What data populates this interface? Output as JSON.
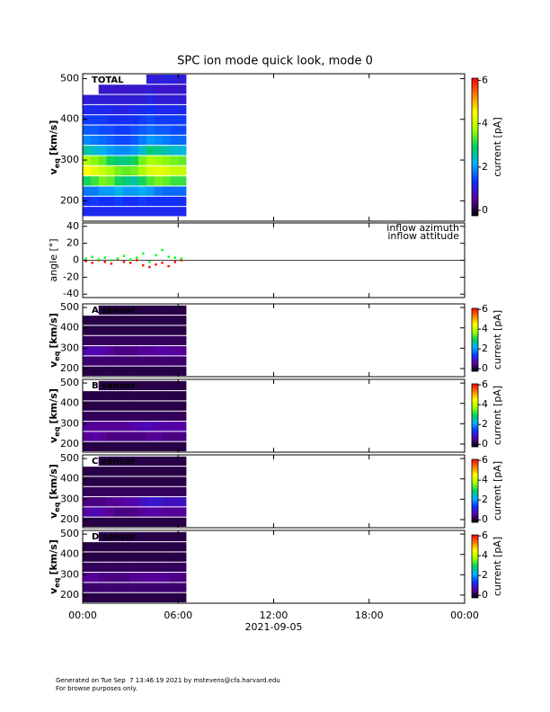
{
  "title": "SPC ion mode quick look, mode 0",
  "chart_data": [
    {
      "type": "heatmap",
      "label": "TOTAL",
      "ylabel": {
        "symbol": "v",
        "subscript": "eq",
        "unit": "[km/s]"
      },
      "xlim": [
        0,
        24
      ],
      "ylim": [
        150,
        512
      ],
      "yticks": [
        200,
        300,
        400,
        500
      ],
      "x_edges": [
        0,
        0.5,
        1,
        1.5,
        2,
        2.5,
        3,
        3.5,
        4,
        4.5,
        5,
        5.5,
        6,
        6.5
      ],
      "y_edges": [
        160,
        185,
        210,
        235,
        260,
        285,
        310,
        335,
        360,
        385,
        410,
        435,
        460,
        485,
        510
      ],
      "z": [
        [
          1.2,
          1.2,
          1.2,
          1.2,
          1.2,
          1.2,
          1.2,
          1.2,
          1.2,
          1.2,
          1.2,
          1.2,
          1.2
        ],
        [
          1.3,
          1.4,
          1.3,
          1.3,
          1.4,
          1.3,
          1.3,
          1.4,
          1.3,
          1.3,
          1.3,
          1.3,
          1.3
        ],
        [
          1.8,
          1.8,
          2,
          2,
          2.2,
          2,
          2,
          2.1,
          2,
          1.8,
          1.7,
          1.7,
          1.7
        ],
        [
          3,
          3.2,
          3.5,
          3.4,
          3,
          2.8,
          2.6,
          3,
          3.3,
          3.5,
          3.4,
          3.2,
          3.2
        ],
        [
          4.5,
          4.3,
          4,
          3.8,
          3.5,
          3.4,
          3.5,
          3.8,
          4.2,
          4.3,
          4.2,
          4,
          4
        ],
        [
          3.8,
          3.6,
          3.4,
          3,
          2.8,
          2.8,
          3,
          3.5,
          3.8,
          3.7,
          3.6,
          3.5,
          3.4
        ],
        [
          2.6,
          2.4,
          2.2,
          2,
          1.9,
          1.9,
          2,
          2.4,
          2.8,
          2.7,
          2.5,
          2.4,
          2.3
        ],
        [
          1.9,
          1.8,
          1.7,
          1.6,
          1.5,
          1.5,
          1.6,
          1.8,
          2,
          1.9,
          1.8,
          1.7,
          1.7
        ],
        [
          1.6,
          1.6,
          1.5,
          1.5,
          1.4,
          1.4,
          1.5,
          1.6,
          1.7,
          1.6,
          1.6,
          1.5,
          1.5
        ],
        [
          1.4,
          1.4,
          1.4,
          1.3,
          1.3,
          1.3,
          1.3,
          1.4,
          1.5,
          1.4,
          1.4,
          1.4,
          1.4
        ],
        [
          1.2,
          1.2,
          1.2,
          1.2,
          1.1,
          1.1,
          1.2,
          1.2,
          1.3,
          1.2,
          1.2,
          1.2,
          1.2
        ],
        [
          1,
          1,
          1,
          1,
          1,
          1,
          1,
          1,
          1.1,
          1,
          1,
          1,
          1
        ],
        [
          null,
          null,
          0.9,
          0.9,
          0.9,
          0.9,
          0.9,
          0.9,
          1,
          0.9,
          0.9,
          0.9,
          0.9
        ],
        [
          null,
          null,
          null,
          null,
          null,
          null,
          null,
          null,
          1,
          1,
          1.1,
          1,
          1
        ]
      ],
      "colormap": [
        "#000000",
        "#5a00a0",
        "#1030ff",
        "#00b0ff",
        "#00d060",
        "#a0ff00",
        "#ffff00",
        "#ff8000",
        "#ff0000"
      ],
      "zlim": [
        -0.25,
        6.1
      ],
      "zticks": [
        0,
        2,
        4,
        6
      ],
      "zlabel": "current [pA]"
    },
    {
      "type": "scatter",
      "ylabel": "angle [°]",
      "xlim": [
        0,
        24
      ],
      "ylim": [
        -44,
        44
      ],
      "yticks": [
        40,
        20,
        0,
        -20,
        -40
      ],
      "series": [
        {
          "name": "inflow azimuth",
          "color": "#ff0000",
          "x": [
            0.2,
            0.6,
            1.0,
            1.4,
            1.8,
            2.2,
            2.6,
            3.0,
            3.4,
            3.8,
            4.2,
            4.6,
            5.0,
            5.4,
            5.8,
            6.2
          ],
          "values": [
            -1,
            -3,
            0,
            -2,
            -4,
            1,
            -2,
            -3,
            0,
            -6,
            -8,
            -5,
            -3,
            -7,
            -2,
            0
          ]
        },
        {
          "name": "inflow attitude",
          "color": "#00ff00",
          "x": [
            0.2,
            0.6,
            1.0,
            1.4,
            1.8,
            2.2,
            2.6,
            3.0,
            3.4,
            3.8,
            4.2,
            4.6,
            5.0,
            5.4,
            5.8,
            6.2
          ],
          "values": [
            2,
            4,
            1,
            3,
            0,
            2,
            5,
            1,
            3,
            8,
            -2,
            6,
            12,
            4,
            3,
            2
          ]
        }
      ]
    },
    {
      "type": "heatmap",
      "label": "A sensor",
      "ylabel": {
        "symbol": "v",
        "subscript": "eq",
        "unit": "[km/s]"
      },
      "xlim": [
        0,
        24
      ],
      "ylim": [
        160,
        518
      ],
      "yticks": [
        200,
        300,
        400,
        500
      ],
      "x_edges": [
        0,
        0.5,
        1,
        1.5,
        2,
        2.5,
        3,
        3.5,
        4,
        4.5,
        5,
        5.5,
        6,
        6.5
      ],
      "y_edges": [
        160,
        210,
        260,
        310,
        360,
        410,
        460,
        510
      ],
      "z": [
        [
          0.1,
          0.1,
          0.1,
          0.1,
          0.1,
          0.1,
          0.1,
          0.1,
          0.1,
          0.1,
          0.1,
          0.1,
          0.1
        ],
        [
          0.3,
          0.3,
          0.3,
          0.3,
          0.3,
          0.3,
          0.3,
          0.3,
          0.3,
          0.3,
          0.3,
          0.3,
          0.3
        ],
        [
          0.6,
          0.7,
          0.6,
          0.5,
          0.4,
          0.4,
          0.4,
          0.5,
          0.5,
          0.6,
          0.6,
          0.5,
          0.5
        ],
        [
          0.2,
          0.2,
          0.2,
          0.2,
          0.2,
          0.2,
          0.2,
          0.2,
          0.2,
          0.2,
          0.2,
          0.2,
          0.2
        ],
        [
          0.1,
          0.1,
          0.1,
          0.1,
          0.1,
          0.1,
          0.1,
          0.1,
          0.1,
          0.1,
          0.1,
          0.1,
          0.1
        ],
        [
          0.1,
          0.1,
          0.1,
          0.1,
          0.1,
          0.1,
          0.1,
          0.1,
          0.1,
          0.1,
          0.1,
          0.1,
          0.1
        ],
        [
          null,
          null,
          0.1,
          0.1,
          0.1,
          0.1,
          0.1,
          0.1,
          0.1,
          0.1,
          0.1,
          0.1,
          0.1
        ]
      ],
      "colormap": [
        "#000000",
        "#5a00a0",
        "#1030ff",
        "#00b0ff",
        "#00d060",
        "#a0ff00",
        "#ffff00",
        "#ff8000",
        "#ff0000"
      ],
      "zlim": [
        -0.25,
        6.1
      ],
      "zticks": [
        0,
        2,
        4,
        6
      ],
      "zlabel": "current [pA]"
    },
    {
      "type": "heatmap",
      "label": "B sensor",
      "ylabel": {
        "symbol": "v",
        "subscript": "eq",
        "unit": "[km/s]"
      },
      "xlim": [
        0,
        24
      ],
      "ylim": [
        160,
        518
      ],
      "yticks": [
        200,
        300,
        400,
        500
      ],
      "x_edges": [
        0,
        0.5,
        1,
        1.5,
        2,
        2.5,
        3,
        3.5,
        4,
        4.5,
        5,
        5.5,
        6,
        6.5
      ],
      "y_edges": [
        160,
        210,
        260,
        310,
        360,
        410,
        460,
        510
      ],
      "z": [
        [
          0.1,
          0.1,
          0.1,
          0.1,
          0.1,
          0.1,
          0.1,
          0.1,
          0.1,
          0.1,
          0.1,
          0.1,
          0.1
        ],
        [
          0.5,
          0.6,
          0.5,
          0.4,
          0.4,
          0.4,
          0.4,
          0.4,
          0.5,
          0.5,
          0.4,
          0.4,
          0.4
        ],
        [
          0.5,
          0.5,
          0.5,
          0.5,
          0.5,
          0.5,
          0.6,
          0.7,
          0.7,
          0.6,
          0.6,
          0.6,
          0.6
        ],
        [
          0.2,
          0.2,
          0.2,
          0.2,
          0.2,
          0.2,
          0.2,
          0.2,
          0.2,
          0.2,
          0.2,
          0.2,
          0.2
        ],
        [
          0.1,
          0.1,
          0.1,
          0.1,
          0.1,
          0.1,
          0.1,
          0.1,
          0.1,
          0.1,
          0.1,
          0.1,
          0.1
        ],
        [
          0.1,
          0.1,
          0.1,
          0.1,
          0.1,
          0.1,
          0.1,
          0.1,
          0.1,
          0.1,
          0.1,
          0.1,
          0.1
        ],
        [
          null,
          null,
          0.1,
          0.1,
          0.1,
          0.1,
          0.1,
          0.1,
          0.1,
          0.1,
          0.1,
          0.1,
          0.1
        ]
      ],
      "colormap": [
        "#000000",
        "#5a00a0",
        "#1030ff",
        "#00b0ff",
        "#00d060",
        "#a0ff00",
        "#ffff00",
        "#ff8000",
        "#ff0000"
      ],
      "zlim": [
        -0.25,
        6.1
      ],
      "zticks": [
        0,
        2,
        4,
        6
      ],
      "zlabel": "current [pA]"
    },
    {
      "type": "heatmap",
      "label": "C sensor",
      "ylabel": {
        "symbol": "v",
        "subscript": "eq",
        "unit": "[km/s]"
      },
      "xlim": [
        0,
        24
      ],
      "ylim": [
        160,
        518
      ],
      "yticks": [
        200,
        300,
        400,
        500
      ],
      "x_edges": [
        0,
        0.5,
        1,
        1.5,
        2,
        2.5,
        3,
        3.5,
        4,
        4.5,
        5,
        5.5,
        6,
        6.5
      ],
      "y_edges": [
        160,
        210,
        260,
        310,
        360,
        410,
        460,
        510
      ],
      "z": [
        [
          0.1,
          0.1,
          0.1,
          0.1,
          0.1,
          0.1,
          0.1,
          0.1,
          0.1,
          0.1,
          0.1,
          0.1,
          0.1
        ],
        [
          0.6,
          0.7,
          0.6,
          0.5,
          0.4,
          0.4,
          0.4,
          0.5,
          0.6,
          0.6,
          0.5,
          0.5,
          0.5
        ],
        [
          0.4,
          0.4,
          0.4,
          0.5,
          0.5,
          0.6,
          0.6,
          0.8,
          0.9,
          0.9,
          0.8,
          0.8,
          0.8
        ],
        [
          0.2,
          0.2,
          0.2,
          0.2,
          0.2,
          0.2,
          0.2,
          0.2,
          0.2,
          0.2,
          0.2,
          0.2,
          0.2
        ],
        [
          0.1,
          0.1,
          0.1,
          0.1,
          0.1,
          0.1,
          0.1,
          0.1,
          0.1,
          0.1,
          0.1,
          0.1,
          0.1
        ],
        [
          0.1,
          0.1,
          0.1,
          0.1,
          0.1,
          0.1,
          0.1,
          0.1,
          0.1,
          0.1,
          0.1,
          0.1,
          0.1
        ],
        [
          null,
          null,
          0.1,
          0.1,
          0.1,
          0.1,
          0.1,
          0.1,
          0.1,
          0.1,
          0.1,
          0.1,
          0.1
        ]
      ],
      "colormap": [
        "#000000",
        "#5a00a0",
        "#1030ff",
        "#00b0ff",
        "#00d060",
        "#a0ff00",
        "#ffff00",
        "#ff8000",
        "#ff0000"
      ],
      "zlim": [
        -0.25,
        6.1
      ],
      "zticks": [
        0,
        2,
        4,
        6
      ],
      "zlabel": "current [pA]"
    },
    {
      "type": "heatmap",
      "label": "D sensor",
      "ylabel": {
        "symbol": "v",
        "subscript": "eq",
        "unit": "[km/s]"
      },
      "xlim": [
        0,
        24
      ],
      "ylim": [
        160,
        518
      ],
      "yticks": [
        200,
        300,
        400,
        500
      ],
      "x_edges": [
        0,
        0.5,
        1,
        1.5,
        2,
        2.5,
        3,
        3.5,
        4,
        4.5,
        5,
        5.5,
        6,
        6.5
      ],
      "y_edges": [
        160,
        210,
        260,
        310,
        360,
        410,
        460,
        510
      ],
      "z": [
        [
          0.1,
          0.1,
          0.1,
          0.1,
          0.1,
          0.1,
          0.1,
          0.1,
          0.1,
          0.1,
          0.1,
          0.1,
          0.1
        ],
        [
          0.3,
          0.3,
          0.3,
          0.3,
          0.3,
          0.3,
          0.3,
          0.3,
          0.3,
          0.3,
          0.3,
          0.3,
          0.3
        ],
        [
          0.5,
          0.5,
          0.4,
          0.4,
          0.4,
          0.4,
          0.5,
          0.5,
          0.5,
          0.5,
          0.5,
          0.4,
          0.4
        ],
        [
          0.2,
          0.2,
          0.2,
          0.2,
          0.2,
          0.2,
          0.2,
          0.2,
          0.2,
          0.2,
          0.2,
          0.2,
          0.2
        ],
        [
          0.1,
          0.1,
          0.1,
          0.1,
          0.1,
          0.1,
          0.1,
          0.1,
          0.1,
          0.1,
          0.1,
          0.1,
          0.1
        ],
        [
          0.1,
          0.1,
          0.1,
          0.1,
          0.1,
          0.1,
          0.1,
          0.1,
          0.1,
          0.1,
          0.1,
          0.1,
          0.1
        ],
        [
          null,
          null,
          0.1,
          0.1,
          0.1,
          0.1,
          0.1,
          0.1,
          0.1,
          0.1,
          0.1,
          0.1,
          0.1
        ]
      ],
      "colormap": [
        "#000000",
        "#5a00a0",
        "#1030ff",
        "#00b0ff",
        "#00d060",
        "#a0ff00",
        "#ffff00",
        "#ff8000",
        "#ff0000"
      ],
      "zlim": [
        -0.25,
        6.1
      ],
      "zticks": [
        0,
        2,
        4,
        6
      ],
      "zlabel": "current [pA]",
      "xticks": [
        {
          "value": 0,
          "label": "00:00"
        },
        {
          "value": 6,
          "label": "06:00"
        },
        {
          "value": 12,
          "label": "12:00"
        },
        {
          "value": 18,
          "label": "18:00"
        },
        {
          "value": 24,
          "label": "00:00"
        }
      ],
      "xlabel": "2021-09-05"
    }
  ],
  "footer": [
    "Generated on Tue Sep  7 13:46:19 2021 by mstevens@cfa.harvard.edu",
    "For browse purposes only."
  ]
}
